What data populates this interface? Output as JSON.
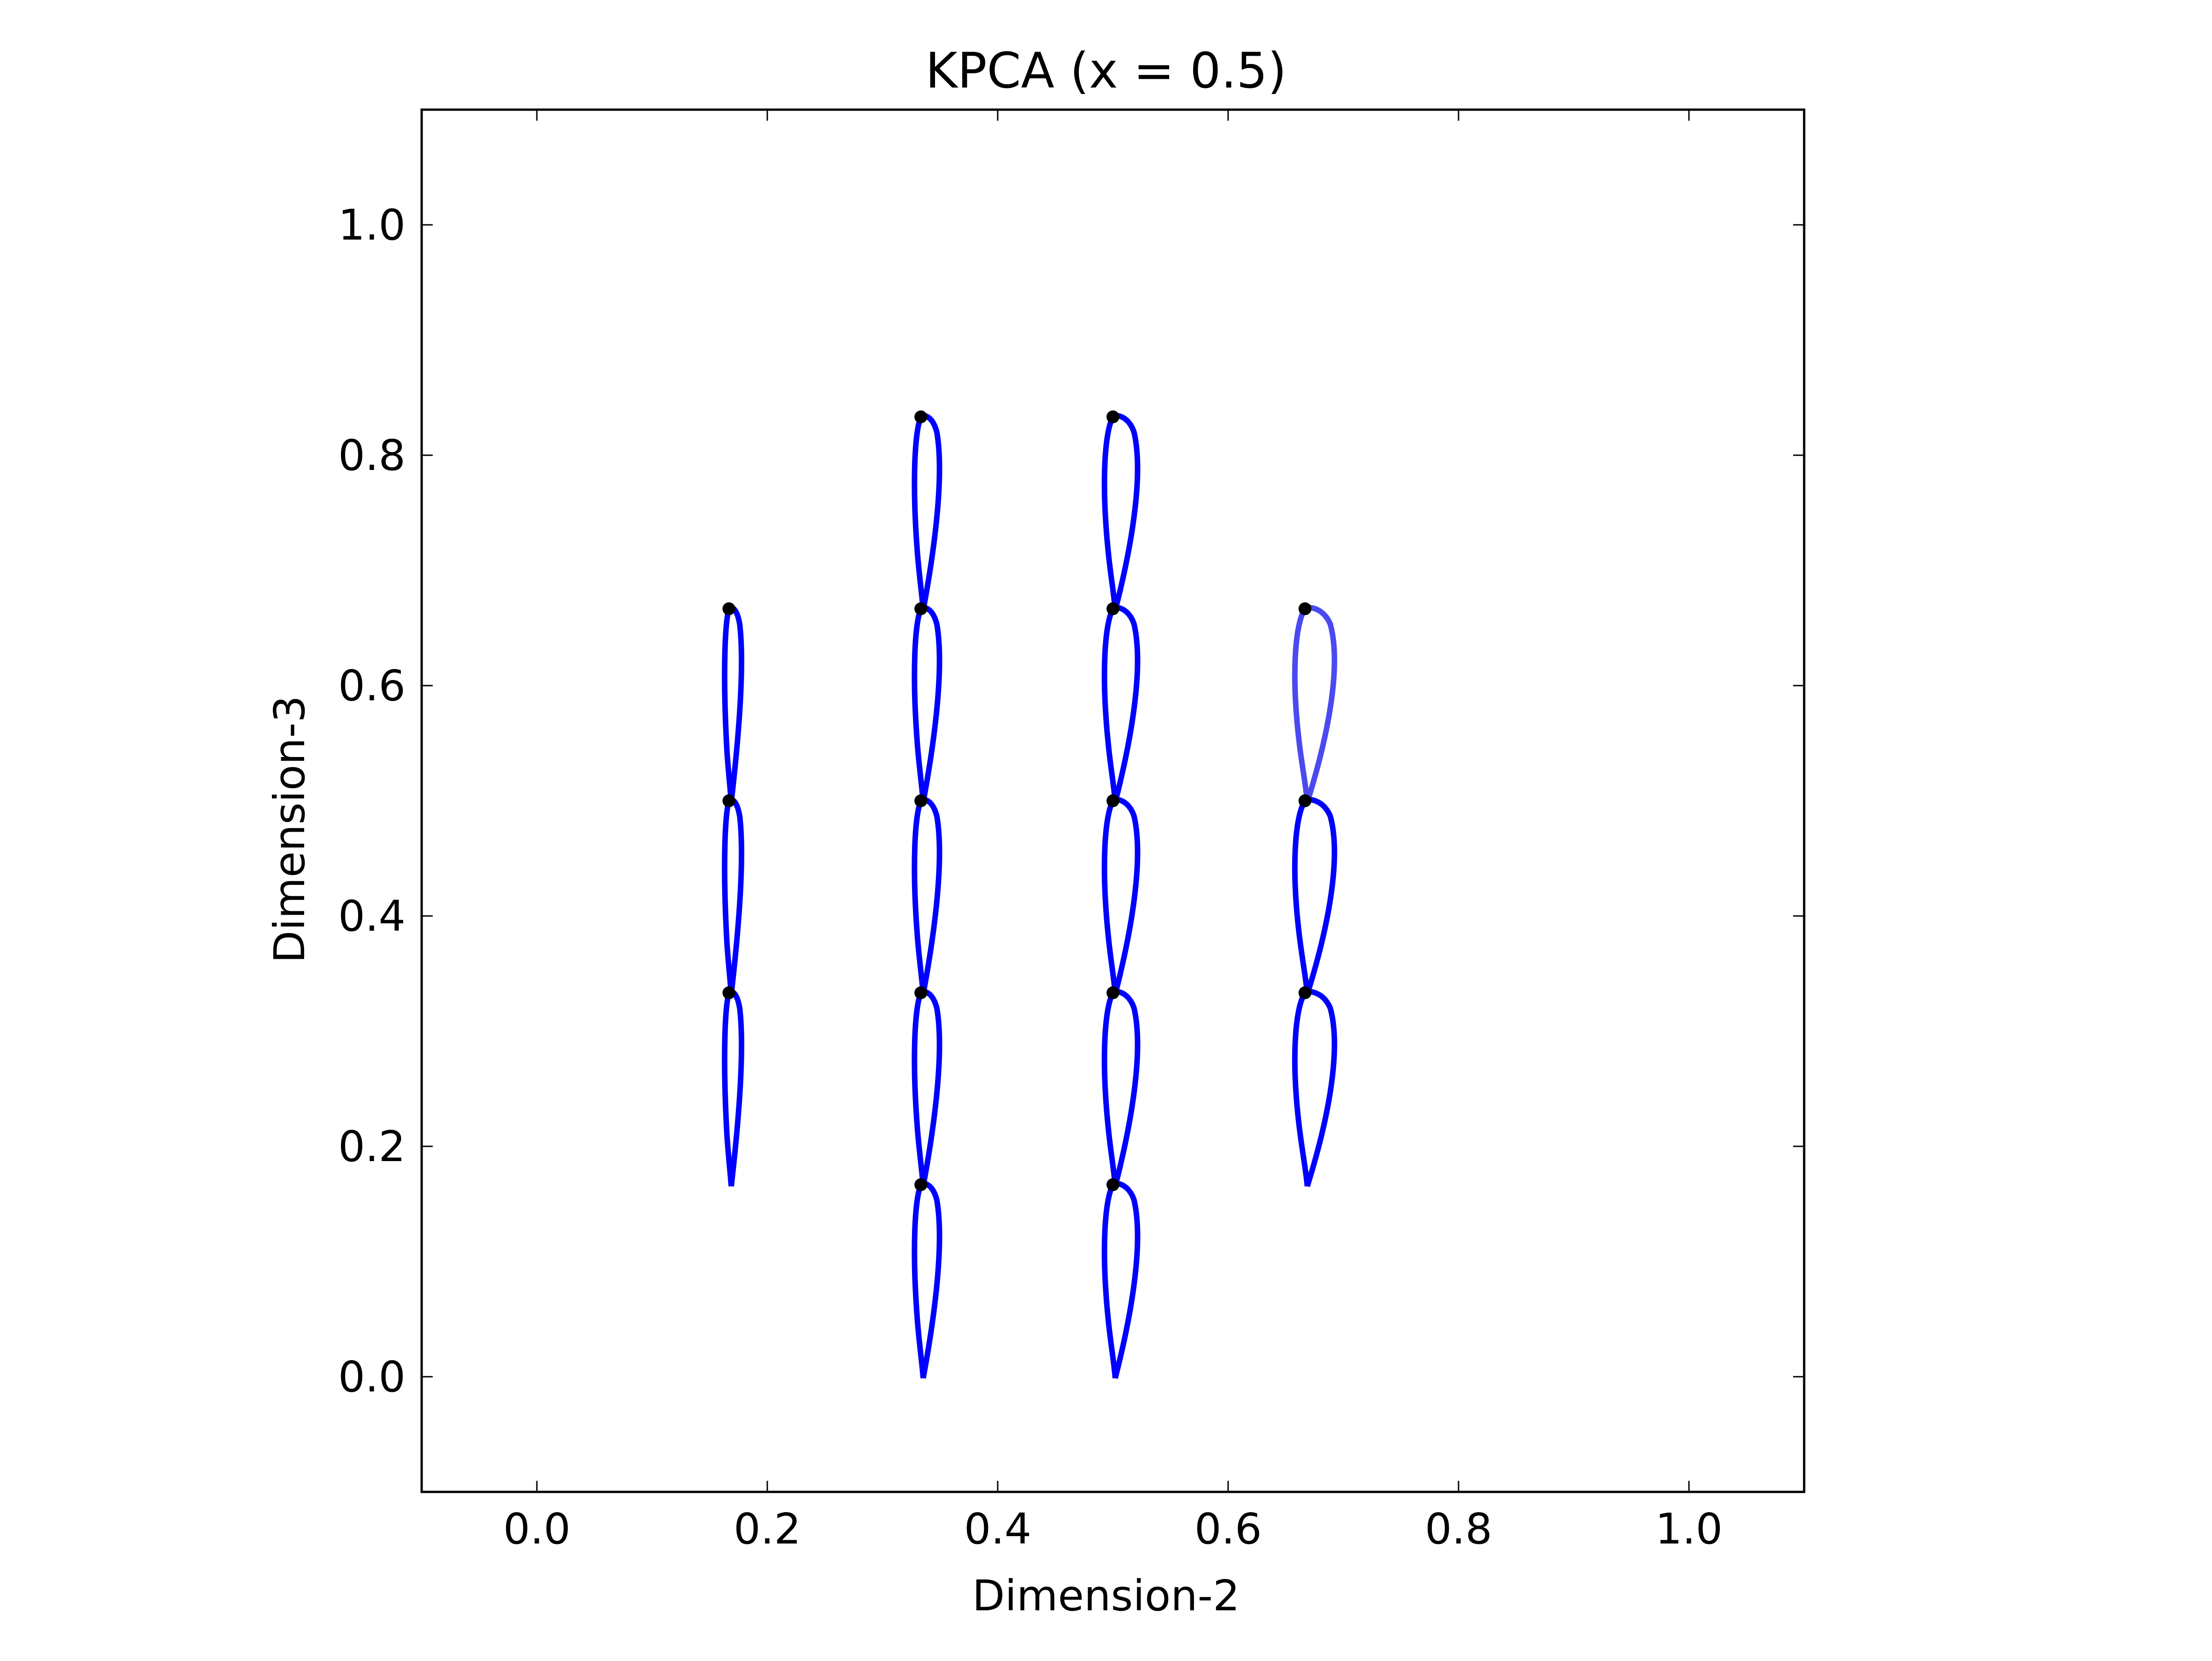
{
  "chart_data": {
    "type": "scatter",
    "title": "KPCA (x = 0.5)",
    "xlabel": "Dimension-2",
    "ylabel": "Dimension-3",
    "xlim": [
      -0.1,
      1.1
    ],
    "ylim": [
      -0.1,
      1.1
    ],
    "xticks": [
      0.0,
      0.2,
      0.4,
      0.6,
      0.8,
      1.0
    ],
    "yticks": [
      0.0,
      0.2,
      0.4,
      0.6,
      0.8,
      1.0
    ],
    "xtick_labels": [
      "0.0",
      "0.2",
      "0.4",
      "0.6",
      "0.8",
      "1.0"
    ],
    "ytick_labels": [
      "0.0",
      "0.2",
      "0.4",
      "0.6",
      "0.8",
      "1.0"
    ],
    "grid": false,
    "marker": "airfoil glyph with dot at top",
    "glyph_color": "#0000ff",
    "faded_glyph_color": "#4a4af0",
    "dot_color": "#000000",
    "points": [
      {
        "x": 0.1667,
        "y": 0.6667,
        "thickness": 0.3
      },
      {
        "x": 0.1667,
        "y": 0.5,
        "thickness": 0.3
      },
      {
        "x": 0.1667,
        "y": 0.3333,
        "thickness": 0.3
      },
      {
        "x": 0.3333,
        "y": 0.8333,
        "thickness": 0.55
      },
      {
        "x": 0.3333,
        "y": 0.6667,
        "thickness": 0.55
      },
      {
        "x": 0.3333,
        "y": 0.5,
        "thickness": 0.55
      },
      {
        "x": 0.3333,
        "y": 0.3333,
        "thickness": 0.55
      },
      {
        "x": 0.3333,
        "y": 0.1667,
        "thickness": 0.55
      },
      {
        "x": 0.5,
        "y": 0.8333,
        "thickness": 0.8
      },
      {
        "x": 0.5,
        "y": 0.6667,
        "thickness": 0.8
      },
      {
        "x": 0.5,
        "y": 0.5,
        "thickness": 0.8
      },
      {
        "x": 0.5,
        "y": 0.3333,
        "thickness": 0.8
      },
      {
        "x": 0.5,
        "y": 0.1667,
        "thickness": 0.8
      },
      {
        "x": 0.6667,
        "y": 0.6667,
        "thickness": 1.0,
        "faded": true
      },
      {
        "x": 0.6667,
        "y": 0.5,
        "thickness": 1.0
      },
      {
        "x": 0.6667,
        "y": 0.3333,
        "thickness": 1.0
      }
    ]
  }
}
